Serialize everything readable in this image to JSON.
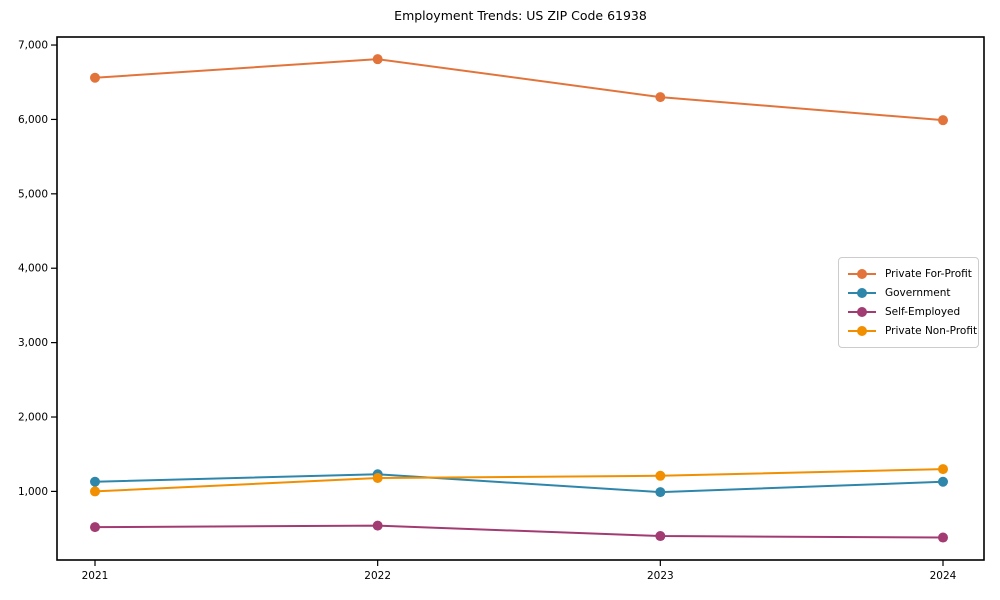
{
  "chart_data": {
    "type": "line",
    "title": "Employment Trends: US ZIP Code 61938",
    "x_tick_labels": [
      "2021",
      "2022",
      "2023",
      "2024"
    ],
    "y_tick_labels": [
      "1,000",
      "2,000",
      "3,000",
      "4,000",
      "5,000",
      "6,000",
      "7,000"
    ],
    "y_tick_values": [
      1000,
      2000,
      3000,
      4000,
      5000,
      6000,
      7000
    ],
    "ylim": [
      78,
      7108
    ],
    "grid": false,
    "legend_position": "right",
    "axis_color": "#000000",
    "series": [
      {
        "name": "Private For-Profit",
        "color": "#E2743B",
        "values": [
          6560,
          6810,
          6300,
          5990
        ]
      },
      {
        "name": "Government",
        "color": "#2E86AB",
        "values": [
          1130,
          1230,
          990,
          1130
        ]
      },
      {
        "name": "Self-Employed",
        "color": "#A23B72",
        "values": [
          520,
          540,
          400,
          380
        ]
      },
      {
        "name": "Private Non-Profit",
        "color": "#F18F01",
        "values": [
          1000,
          1180,
          1210,
          1300
        ]
      }
    ]
  }
}
